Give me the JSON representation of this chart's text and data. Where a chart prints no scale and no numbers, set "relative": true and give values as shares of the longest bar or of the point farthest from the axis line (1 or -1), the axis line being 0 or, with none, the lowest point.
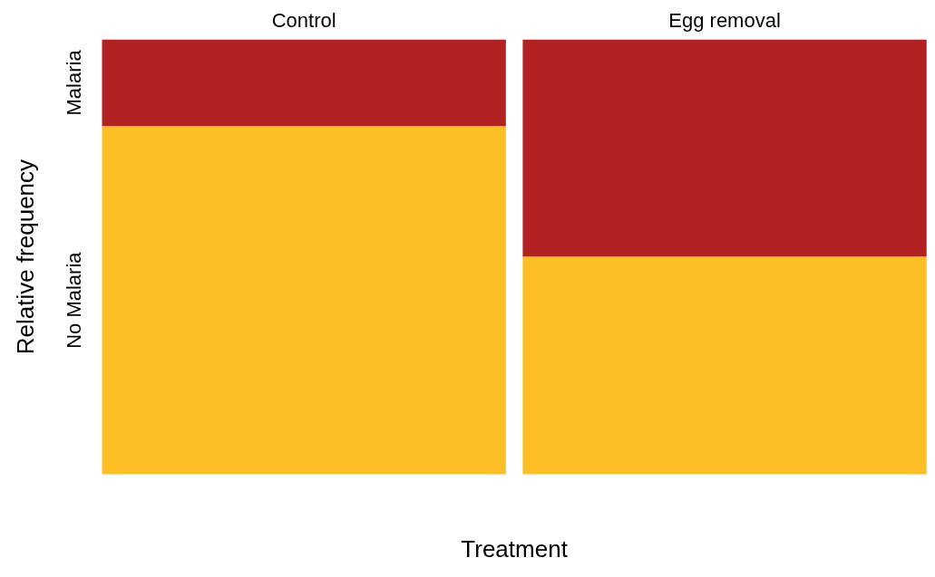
{
  "chart_data": {
    "type": "bar",
    "stacked": true,
    "relative": true,
    "xlabel": "Treatment",
    "ylabel": "Relative frequency",
    "categories": [
      "Control",
      "Egg removal"
    ],
    "series": [
      {
        "name": "No Malaria",
        "color": "#fdbf26",
        "values": [
          0.8,
          0.5
        ]
      },
      {
        "name": "Malaria",
        "color": "#b22222",
        "values": [
          0.2,
          0.5
        ]
      }
    ],
    "legend": false,
    "grid": false
  }
}
